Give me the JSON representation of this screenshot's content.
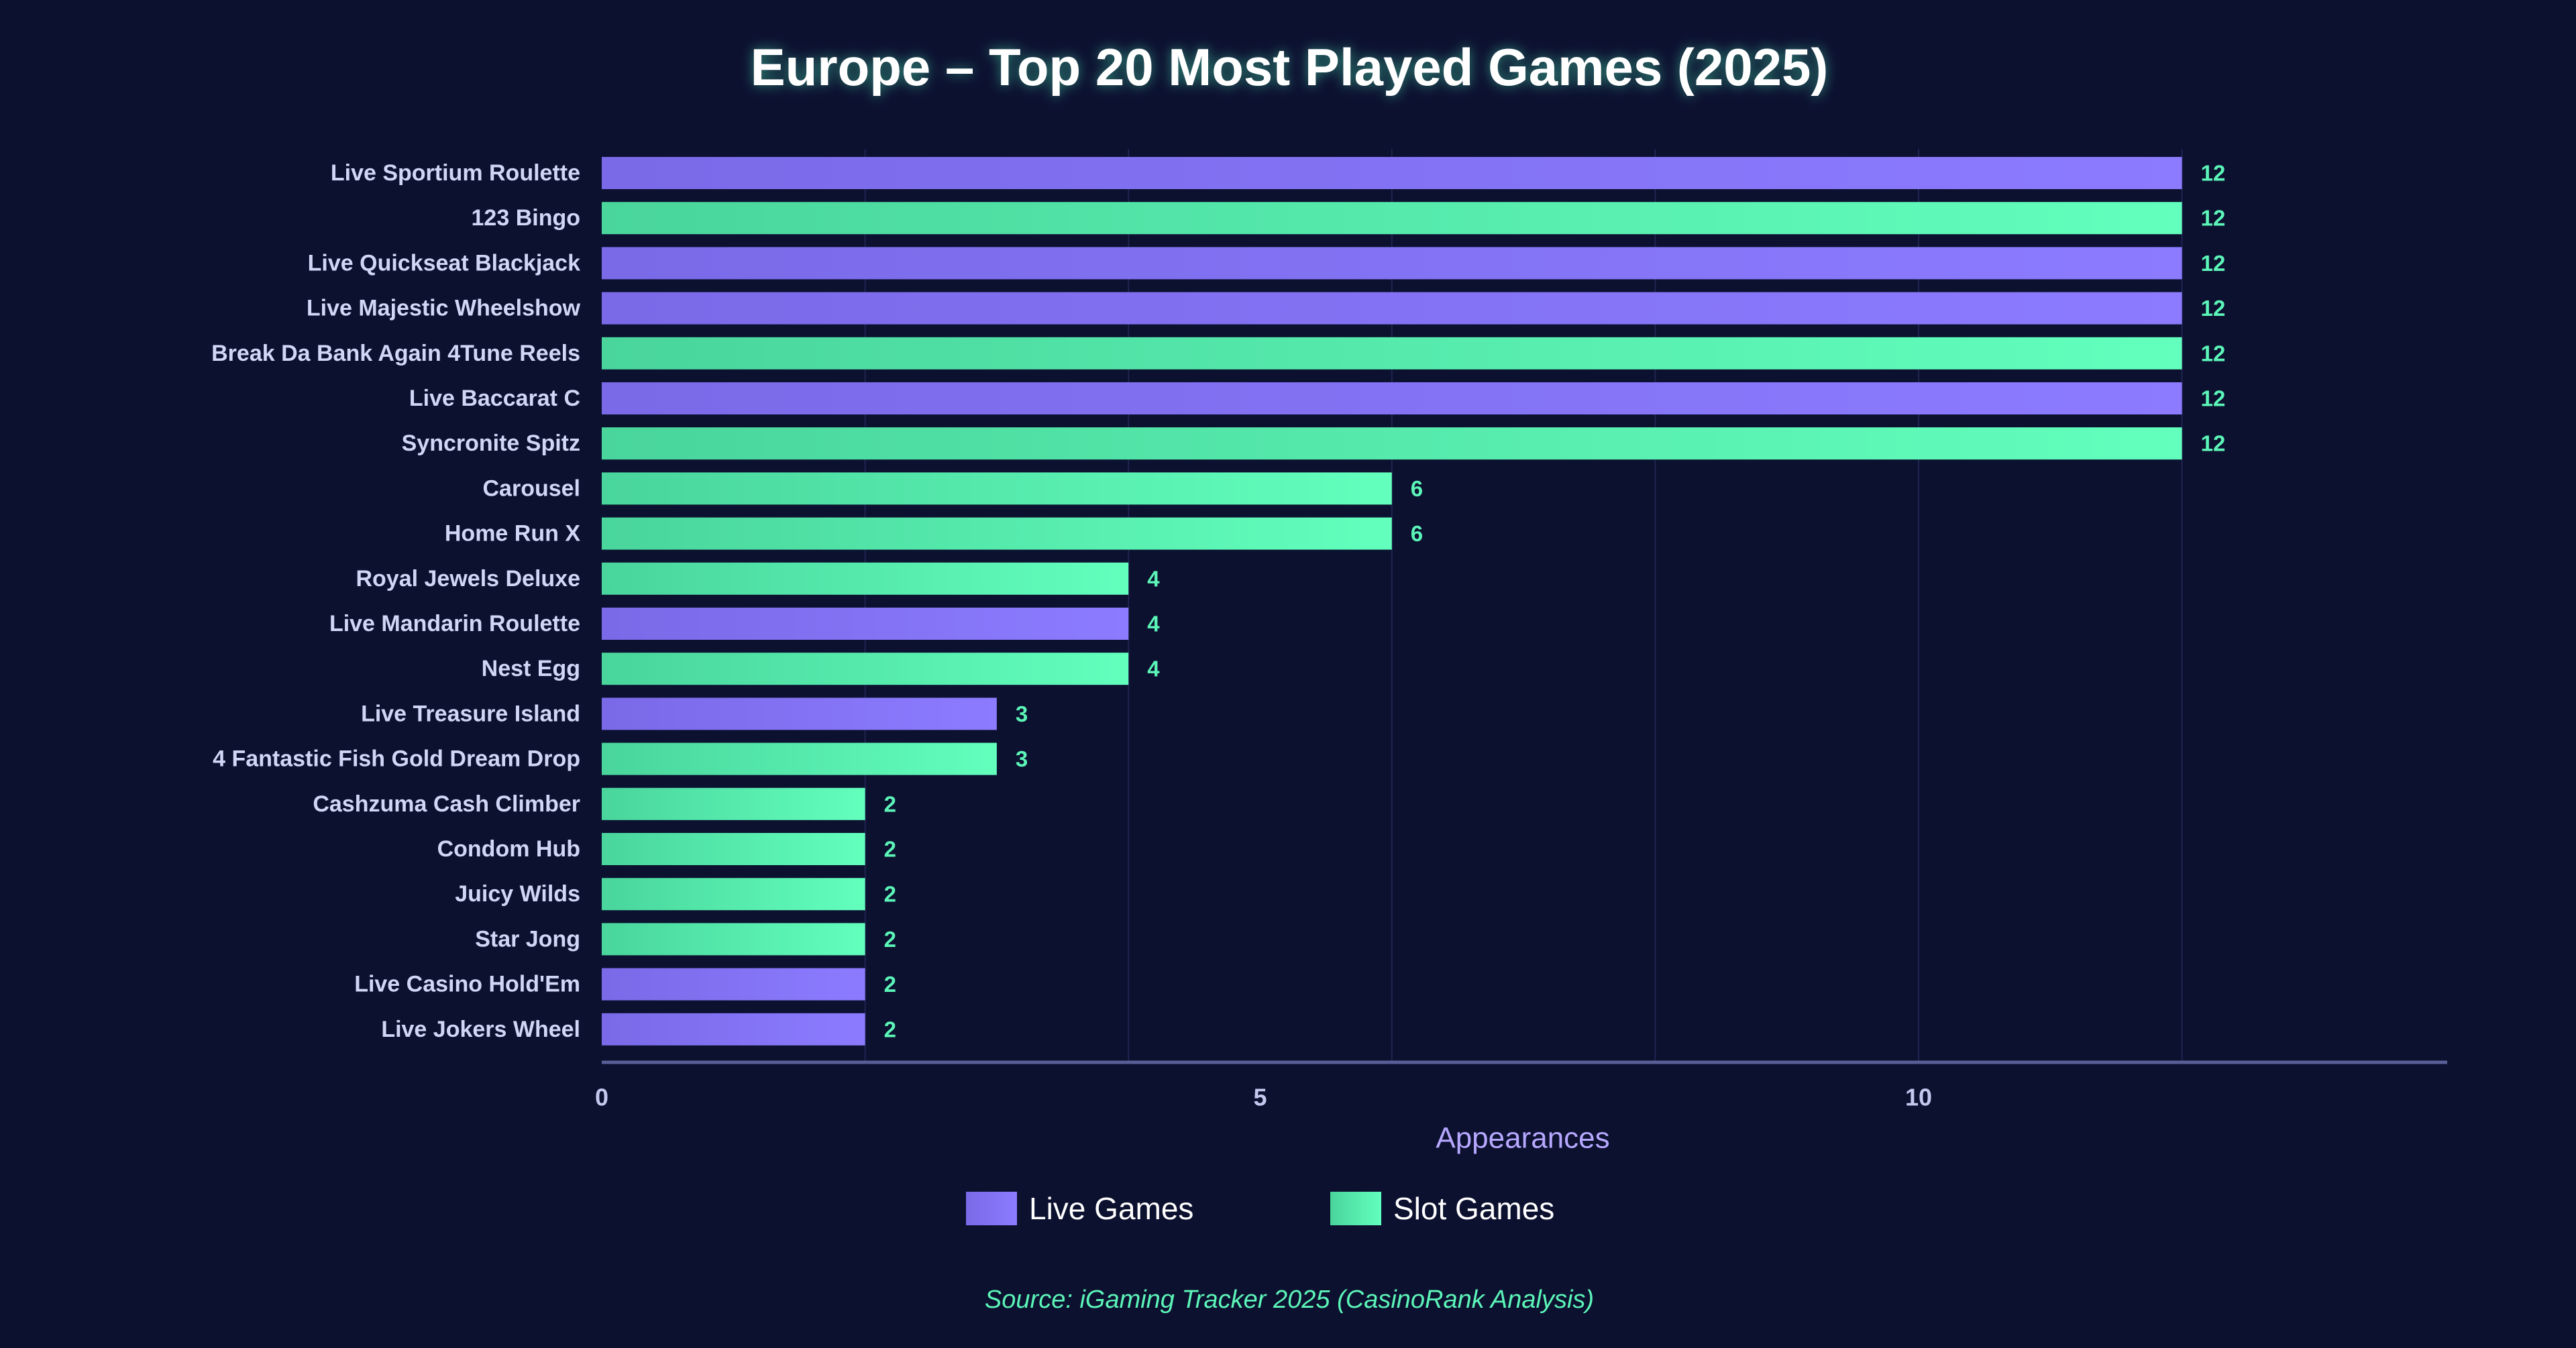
{
  "colors": {
    "background": "#0c1130",
    "title": "#ffffff",
    "title_glow": "#4ef0b5",
    "category_label": "#d2d6f6",
    "axis_line": "#5a5f98",
    "grid": "#1f2550",
    "tick_label": "#c4c8ee",
    "axis_title": "#b7a8ff",
    "value_label": "#5cf5b8",
    "legend_text": "#ffffff",
    "source": "#5cf5b8",
    "live_start": "#7a6ae8",
    "live_end": "#8c7bff",
    "slot_start": "#49d59c",
    "slot_end": "#62ffbd"
  },
  "chart_data": {
    "type": "bar",
    "orientation": "horizontal",
    "title": "Europe – Top 20 Most Played Games (2025)",
    "xlabel": "Appearances",
    "ylabel": "",
    "xlim": [
      0,
      14
    ],
    "xticks": [
      0,
      5,
      10
    ],
    "grid": true,
    "legend_position": "bottom-center",
    "categories": [
      "Live Sportium Roulette",
      "123 Bingo",
      "Live Quickseat Blackjack",
      "Live Majestic Wheelshow",
      "Break Da Bank Again 4Tune Reels",
      "Live Baccarat C",
      "Syncronite Spitz",
      "Carousel",
      "Home Run X",
      "Royal Jewels Deluxe",
      "Live Mandarin Roulette",
      "Nest Egg",
      "Live Treasure Island",
      "4 Fantastic Fish Gold Dream Drop",
      "Cashzuma Cash Climber",
      "Condom Hub",
      "Juicy Wilds",
      "Star Jong",
      "Live Casino Hold'Em",
      "Live Jokers Wheel"
    ],
    "values": [
      12,
      12,
      12,
      12,
      12,
      12,
      12,
      6,
      6,
      4,
      4,
      4,
      3,
      3,
      2,
      2,
      2,
      2,
      2,
      2
    ],
    "groups": [
      "live",
      "slot",
      "live",
      "live",
      "slot",
      "live",
      "slot",
      "slot",
      "slot",
      "slot",
      "live",
      "slot",
      "live",
      "slot",
      "slot",
      "slot",
      "slot",
      "slot",
      "live",
      "live"
    ],
    "series": [
      {
        "key": "live",
        "name": "Live Games"
      },
      {
        "key": "slot",
        "name": "Slot Games"
      }
    ],
    "source": "Source: iGaming Tracker 2025 (CasinoRank Analysis)"
  }
}
